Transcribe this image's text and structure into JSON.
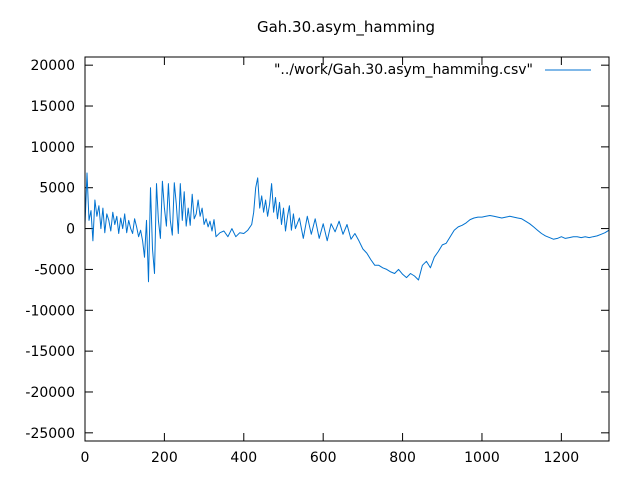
{
  "chart_data": {
    "type": "line",
    "title": "Gah.30.asym_hamming",
    "xlabel": "",
    "ylabel": "",
    "xlim": [
      0,
      1320
    ],
    "ylim": [
      -26000,
      21000
    ],
    "grid": false,
    "legend_position": "top-right",
    "x_ticks": [
      0,
      200,
      400,
      600,
      800,
      1000,
      1200
    ],
    "y_ticks": [
      20000,
      15000,
      10000,
      5000,
      0,
      -5000,
      -10000,
      -15000,
      -20000,
      -25000
    ],
    "series": [
      {
        "name": "\"../work/Gah.30.asym_hamming.csv\"",
        "color": "#0072d0",
        "x": [
          0,
          5,
          10,
          15,
          20,
          25,
          30,
          35,
          40,
          45,
          50,
          55,
          60,
          65,
          70,
          75,
          80,
          85,
          90,
          95,
          100,
          105,
          110,
          115,
          120,
          125,
          130,
          135,
          140,
          145,
          150,
          155,
          160,
          165,
          170,
          175,
          180,
          185,
          190,
          195,
          200,
          205,
          210,
          215,
          220,
          225,
          230,
          235,
          240,
          245,
          250,
          255,
          260,
          265,
          270,
          275,
          280,
          285,
          290,
          295,
          300,
          305,
          310,
          315,
          320,
          325,
          330,
          340,
          350,
          360,
          370,
          380,
          390,
          400,
          410,
          420,
          425,
          430,
          435,
          440,
          445,
          450,
          455,
          460,
          465,
          470,
          475,
          480,
          485,
          490,
          495,
          500,
          505,
          510,
          515,
          520,
          525,
          530,
          540,
          550,
          560,
          570,
          580,
          590,
          600,
          610,
          620,
          630,
          640,
          650,
          660,
          670,
          680,
          690,
          700,
          710,
          720,
          730,
          740,
          750,
          760,
          770,
          780,
          790,
          800,
          810,
          820,
          830,
          840,
          850,
          860,
          870,
          880,
          890,
          900,
          910,
          920,
          930,
          940,
          950,
          960,
          970,
          980,
          990,
          1000,
          1010,
          1020,
          1030,
          1040,
          1050,
          1060,
          1070,
          1080,
          1090,
          1100,
          1110,
          1120,
          1130,
          1140,
          1150,
          1160,
          1170,
          1180,
          1190,
          1200,
          1210,
          1220,
          1230,
          1240,
          1250,
          1260,
          1270,
          1280,
          1290,
          1300,
          1310,
          1320
        ],
        "y": [
          500,
          6800,
          1000,
          2200,
          -1500,
          3500,
          1500,
          2800,
          0,
          2500,
          -500,
          1800,
          1000,
          -300,
          2000,
          500,
          1500,
          -600,
          1300,
          0,
          1800,
          -500,
          1000,
          0,
          -600,
          1200,
          200,
          -1000,
          -200,
          -1500,
          -3500,
          1000,
          -6500,
          5000,
          -2500,
          -5500,
          5500,
          1000,
          -1200,
          5800,
          2500,
          300,
          5500,
          1000,
          -800,
          5600,
          3000,
          -600,
          5500,
          1000,
          4500,
          300,
          2500,
          400,
          4200,
          1200,
          1800,
          3500,
          1500,
          2500,
          500,
          1200,
          200,
          900,
          -300,
          1100,
          -1000,
          -500,
          -300,
          -1000,
          0,
          -1000,
          -500,
          -600,
          -200,
          500,
          2000,
          5000,
          6200,
          2500,
          4000,
          2000,
          3500,
          1500,
          3000,
          5500,
          2000,
          3800,
          1200,
          3200,
          500,
          2500,
          -300,
          1500,
          2800,
          -200,
          1800,
          0,
          1300,
          -1200,
          1500,
          -700,
          1200,
          -1200,
          600,
          -1500,
          600,
          -400,
          900,
          -700,
          500,
          -1300,
          -600,
          -1500,
          -2500,
          -3000,
          -3800,
          -4500,
          -4500,
          -4800,
          -5000,
          -5300,
          -5500,
          -5000,
          -5600,
          -6000,
          -5500,
          -5800,
          -6300,
          -4500,
          -4000,
          -4800,
          -3500,
          -2800,
          -2000,
          -1800,
          -1000,
          -200,
          200,
          400,
          700,
          1100,
          1300,
          1400,
          1400,
          1500,
          1600,
          1500,
          1400,
          1300,
          1400,
          1500,
          1400,
          1300,
          1200,
          900,
          600,
          200,
          -200,
          -600,
          -900,
          -1100,
          -1300,
          -1200,
          -1000,
          -1200,
          -1100,
          -1000,
          -1000,
          -1100,
          -1000,
          -1100,
          -1000,
          -900,
          -700,
          -500,
          -200
        ]
      }
    ]
  }
}
